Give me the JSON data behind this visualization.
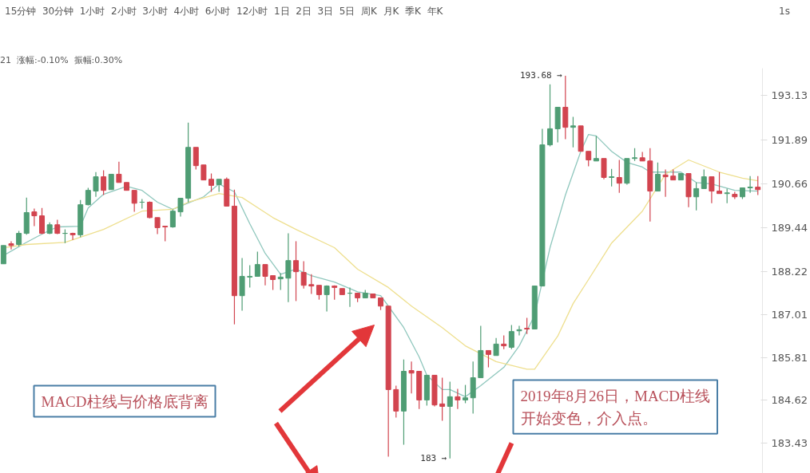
{
  "chart_data": {
    "type": "candlestick",
    "categories": [
      null,
      null,
      null,
      null,
      null,
      null,
      null,
      null,
      null,
      null,
      null,
      null,
      null,
      null,
      null,
      null,
      null,
      null,
      null,
      null,
      null,
      null,
      null,
      null,
      null,
      null,
      null,
      null,
      null,
      null,
      null,
      null,
      null,
      null,
      null,
      null,
      null,
      null,
      null,
      null,
      null,
      null,
      null,
      null,
      null,
      null,
      null,
      null,
      null,
      null,
      null,
      null,
      null,
      null,
      null,
      null,
      null,
      null,
      null,
      null,
      null,
      null,
      null,
      null,
      null,
      null,
      null,
      null,
      null,
      null,
      null,
      null,
      null,
      null,
      null,
      null,
      null,
      null,
      null,
      null,
      null,
      null,
      null,
      null,
      null,
      null,
      null,
      null,
      null,
      null,
      null,
      null,
      null,
      null,
      null,
      null,
      null,
      null,
      null
    ],
    "ohlc": [
      [
        188.43,
        188.94,
        188.43,
        188.94
      ],
      [
        188.99,
        189.06,
        188.83,
        188.94
      ],
      [
        188.97,
        189.35,
        188.92,
        189.28
      ],
      [
        189.28,
        190.28,
        189.24,
        189.86
      ],
      [
        189.88,
        189.97,
        189.48,
        189.77
      ],
      [
        189.77,
        189.99,
        189.26,
        189.28
      ],
      [
        189.28,
        189.59,
        189.26,
        189.52
      ],
      [
        189.52,
        189.66,
        189.26,
        189.28
      ],
      [
        189.28,
        189.39,
        189.01,
        189.28
      ],
      [
        189.28,
        189.3,
        189.1,
        189.24
      ],
      [
        189.24,
        190.21,
        189.17,
        190.08
      ],
      [
        190.08,
        190.55,
        190.06,
        190.48
      ],
      [
        190.46,
        190.99,
        190.3,
        190.86
      ],
      [
        190.86,
        191.04,
        190.35,
        190.48
      ],
      [
        190.5,
        190.93,
        190.5,
        190.93
      ],
      [
        190.93,
        191.28,
        190.7,
        190.7
      ],
      [
        190.7,
        190.7,
        190.48,
        190.48
      ],
      [
        190.48,
        190.48,
        189.88,
        190.12
      ],
      [
        190.15,
        190.24,
        189.97,
        190.15
      ],
      [
        190.15,
        190.17,
        189.7,
        189.72
      ],
      [
        189.72,
        189.72,
        189.26,
        189.44
      ],
      [
        189.48,
        189.48,
        189.06,
        189.46
      ],
      [
        189.46,
        189.95,
        189.44,
        189.9
      ],
      [
        189.88,
        190.26,
        189.75,
        190.26
      ],
      [
        190.26,
        192.37,
        190.15,
        191.68
      ],
      [
        191.68,
        191.68,
        191.06,
        191.17
      ],
      [
        191.19,
        191.19,
        190.77,
        190.77
      ],
      [
        190.79,
        190.95,
        190.44,
        190.62
      ],
      [
        190.64,
        190.79,
        190.44,
        190.79
      ],
      [
        190.79,
        190.84,
        190.04,
        190.04
      ],
      [
        190.04,
        190.5,
        186.74,
        187.54
      ],
      [
        187.54,
        188.59,
        187.12,
        188.08
      ],
      [
        188.06,
        188.39,
        187.77,
        188.08
      ],
      [
        188.08,
        188.77,
        188.08,
        188.41
      ],
      [
        188.41,
        188.41,
        187.83,
        188.08
      ],
      [
        188.1,
        188.1,
        187.7,
        187.99
      ],
      [
        188.01,
        188.17,
        187.7,
        188.06
      ],
      [
        188.03,
        189.28,
        187.36,
        188.52
      ],
      [
        188.52,
        189.06,
        187.39,
        188.21
      ],
      [
        188.19,
        188.5,
        187.74,
        187.83
      ],
      [
        187.85,
        188.14,
        187.59,
        187.81
      ],
      [
        187.83,
        187.83,
        187.43,
        187.57
      ],
      [
        187.57,
        187.83,
        187.1,
        187.81
      ],
      [
        187.81,
        187.83,
        187.43,
        187.77
      ],
      [
        187.74,
        187.74,
        187.57,
        187.57
      ],
      [
        187.61,
        187.77,
        187.23,
        187.61
      ],
      [
        187.61,
        187.61,
        187.36,
        187.48
      ],
      [
        187.48,
        187.7,
        187.48,
        187.61
      ],
      [
        187.59,
        187.59,
        187.48,
        187.48
      ],
      [
        187.48,
        187.48,
        187.14,
        187.25
      ],
      [
        187.25,
        187.25,
        183.05,
        184.92
      ],
      [
        184.92,
        185.03,
        184.14,
        184.32
      ],
      [
        184.32,
        185.76,
        183.38,
        185.43
      ],
      [
        185.45,
        185.7,
        184.81,
        185.38
      ],
      [
        185.43,
        185.43,
        184.38,
        184.63
      ],
      [
        184.63,
        185.32,
        184.47,
        185.32
      ],
      [
        185.32,
        185.32,
        184.45,
        184.49
      ],
      [
        184.52,
        185.25,
        184.05,
        184.45
      ],
      [
        184.45,
        185.14,
        183.0,
        184.72
      ],
      [
        184.72,
        184.94,
        184.38,
        184.63
      ],
      [
        184.63,
        185.05,
        184.54,
        184.69
      ],
      [
        184.69,
        185.7,
        184.25,
        185.25
      ],
      [
        185.25,
        186.7,
        185.25,
        186.01
      ],
      [
        186.01,
        186.01,
        185.54,
        185.9
      ],
      [
        185.87,
        186.36,
        185.87,
        186.19
      ],
      [
        186.19,
        186.43,
        186.05,
        186.14
      ],
      [
        186.1,
        186.72,
        186.05,
        186.54
      ],
      [
        186.56,
        186.7,
        186.43,
        186.59
      ],
      [
        186.63,
        186.92,
        186.47,
        186.61
      ],
      [
        186.61,
        187.81,
        186.61,
        187.81
      ],
      [
        187.81,
        192.2,
        187.81,
        191.75
      ],
      [
        191.75,
        193.44,
        191.71,
        192.2
      ],
      [
        192.2,
        192.8,
        191.82,
        192.8
      ],
      [
        192.8,
        193.68,
        191.91,
        192.24
      ],
      [
        192.24,
        192.53,
        191.68,
        192.28
      ],
      [
        192.28,
        192.28,
        191.57,
        191.57
      ],
      [
        191.57,
        191.57,
        191.15,
        191.33
      ],
      [
        191.3,
        192.0,
        191.3,
        191.37
      ],
      [
        191.37,
        191.37,
        190.79,
        190.84
      ],
      [
        190.84,
        191.08,
        190.59,
        190.86
      ],
      [
        190.84,
        191.33,
        190.41,
        190.68
      ],
      [
        190.68,
        191.37,
        190.64,
        191.37
      ],
      [
        191.37,
        191.66,
        191.3,
        191.39
      ],
      [
        191.39,
        191.55,
        191.3,
        191.3
      ],
      [
        191.3,
        191.66,
        189.61,
        190.46
      ],
      [
        190.46,
        191.26,
        190.46,
        190.93
      ],
      [
        190.91,
        191.06,
        190.3,
        190.86
      ],
      [
        190.88,
        191.06,
        190.77,
        190.77
      ],
      [
        190.77,
        190.95,
        190.77,
        190.95
      ],
      [
        190.95,
        190.95,
        190.01,
        190.3
      ],
      [
        190.3,
        190.7,
        189.92,
        190.53
      ],
      [
        190.53,
        191.06,
        190.53,
        190.86
      ],
      [
        190.86,
        190.86,
        190.12,
        190.46
      ],
      [
        190.46,
        190.99,
        190.39,
        190.39
      ],
      [
        190.39,
        190.53,
        190.12,
        190.41
      ],
      [
        190.37,
        190.44,
        190.24,
        190.3
      ],
      [
        190.3,
        190.55,
        190.24,
        190.55
      ],
      [
        190.55,
        190.88,
        190.41,
        190.57
      ],
      [
        190.57,
        190.88,
        190.35,
        190.5
      ]
    ],
    "series": [
      {
        "type": "line",
        "color": "#8fc7bd",
        "values": [
          188.66,
          null,
          null,
          189.03,
          null,
          189.26,
          null,
          189.46,
          null,
          null,
          189.48,
          189.99,
          null,
          190.37,
          null,
          null,
          190.59,
          null,
          190.48,
          null,
          190.15,
          null,
          189.95,
          190.04,
          null,
          null,
          190.3,
          null,
          190.66,
          null,
          190.44,
          null,
          189.55,
          null,
          188.72,
          null,
          188.14,
          null,
          188.28,
          null,
          188.1,
          null,
          null,
          187.92,
          null,
          null,
          187.65,
          null,
          null,
          187.54,
          187.25,
          null,
          186.65,
          null,
          185.83,
          185.32,
          null,
          184.92,
          184.92,
          null,
          184.72,
          null,
          185.03,
          null,
          null,
          185.54,
          null,
          186.14,
          null,
          186.99,
          null,
          188.88,
          null,
          190.35,
          null,
          191.57,
          192.04,
          192.0,
          null,
          191.57,
          null,
          191.26,
          null,
          191.13,
          190.99,
          null,
          null,
          null,
          190.99,
          null,
          190.7,
          null,
          190.66,
          null,
          null,
          190.48,
          null,
          null,
          190.46
        ]
      },
      {
        "type": "line",
        "color": "#eedf8e",
        "values": [
          188.88,
          null,
          null,
          188.97,
          null,
          null,
          null,
          null,
          189.03,
          null,
          null,
          null,
          null,
          189.39,
          null,
          null,
          null,
          null,
          189.9,
          null,
          null,
          null,
          189.95,
          null,
          190.15,
          null,
          null,
          null,
          190.39,
          null,
          null,
          190.28,
          null,
          null,
          null,
          189.72,
          null,
          null,
          189.39,
          null,
          null,
          null,
          null,
          188.88,
          null,
          null,
          188.28,
          null,
          null,
          null,
          187.77,
          null,
          null,
          187.25,
          null,
          null,
          null,
          186.65,
          null,
          null,
          186.14,
          null,
          null,
          null,
          185.7,
          null,
          null,
          null,
          185.49,
          185.49,
          null,
          null,
          186.41,
          null,
          187.32,
          null,
          187.99,
          null,
          null,
          189.01,
          null,
          null,
          null,
          189.9,
          null,
          null,
          190.93,
          null,
          null,
          191.33,
          null,
          null,
          null,
          190.99,
          null,
          null,
          190.82,
          null,
          190.75
        ]
      }
    ],
    "ylim": [
      182.58,
      193.89
    ],
    "yticks": [
      193.13,
      191.89,
      190.66,
      189.44,
      188.22,
      187.01,
      185.81,
      184.62,
      183.43
    ],
    "tick_labels": "y",
    "annotations": [
      "15分钟  30分钟  1小时  2小时  3小时  4小时  6小时  12小时  1日  2日  3日  5日  周K  月K  季K  年K",
      "1s",
      "21  涨幅:-0.10%  振幅:0.30%",
      "MACD柱线与价格底背离",
      "2019年8月26日，MACD柱线开始变色，介入点。",
      "193.68 →",
      "183 →"
    ]
  }
}
